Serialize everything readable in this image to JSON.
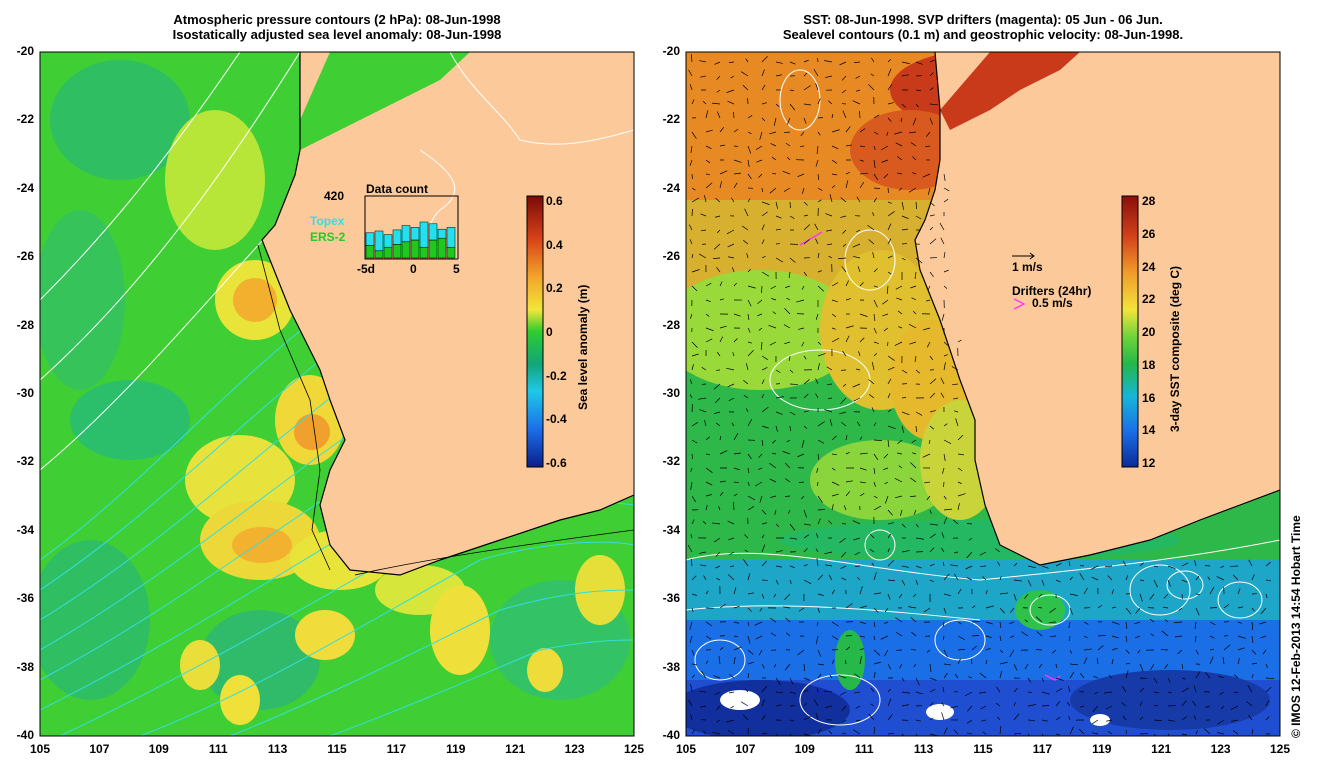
{
  "left_panel": {
    "title_line1": "Atmospheric pressure contours (2 hPa): 08-Jun-1998",
    "title_line2": "Isostatically adjusted sea level anomaly: 08-Jun-1998",
    "x_ticks": [
      "105",
      "107",
      "109",
      "111",
      "113",
      "115",
      "117",
      "119",
      "121",
      "123",
      "125"
    ],
    "y_ticks": [
      "-20",
      "-22",
      "-24",
      "-26",
      "-28",
      "-30",
      "-32",
      "-34",
      "-36",
      "-38",
      "-40"
    ],
    "colorbar": {
      "label": "Sea level anomaly (m)",
      "ticks": [
        "0.6",
        "0.4",
        "0.2",
        "0",
        "-0.2",
        "-0.4",
        "-0.6"
      ],
      "colors": [
        "#7a0a08",
        "#d84418",
        "#f3a52c",
        "#f2e63a",
        "#2fcc2f",
        "#12a57a",
        "#1ec8e8",
        "#1b6fe8",
        "#0a1f8a"
      ]
    },
    "inset": {
      "count": "420",
      "title": "Data count",
      "legend_topex": "Topex",
      "legend_ers2": "ERS-2",
      "x_labels": [
        "-5d",
        "0",
        "5"
      ],
      "topex_color": "#22e0ee",
      "ers_color": "#1ec81e",
      "bars": [
        {
          "topex": 0.35,
          "ers": 0.35
        },
        {
          "topex": 0.55,
          "ers": 0.2
        },
        {
          "topex": 0.35,
          "ers": 0.3
        },
        {
          "topex": 0.4,
          "ers": 0.38
        },
        {
          "topex": 0.45,
          "ers": 0.45
        },
        {
          "topex": 0.35,
          "ers": 0.5
        },
        {
          "topex": 0.7,
          "ers": 0.3
        },
        {
          "topex": 0.45,
          "ers": 0.5
        },
        {
          "topex": 0.25,
          "ers": 0.55
        },
        {
          "topex": 0.55,
          "ers": 0.3
        }
      ]
    }
  },
  "right_panel": {
    "title_line1": "SST: 08-Jun-1998. SVP drifters (magenta): 05 Jun - 06 Jun.",
    "title_line2": "Sealevel contours (0.1 m) and geostrophic velocity: 08-Jun-1998.",
    "x_ticks": [
      "105",
      "107",
      "109",
      "111",
      "113",
      "115",
      "117",
      "119",
      "121",
      "123",
      "125"
    ],
    "y_ticks": [
      "-20",
      "-22",
      "-24",
      "-26",
      "-28",
      "-30",
      "-32",
      "-34",
      "-36",
      "-38",
      "-40"
    ],
    "colorbar": {
      "label": "3-day SST composite (deg C)",
      "ticks": [
        "28",
        "26",
        "24",
        "22",
        "20",
        "18",
        "16",
        "14",
        "12"
      ],
      "colors": [
        "#8a0e0a",
        "#d2421a",
        "#f09a2a",
        "#f2e43a",
        "#6ed43a",
        "#22b84a",
        "#17b5d8",
        "#1a6ee6",
        "#0b2a9a"
      ]
    },
    "velocity_scale": "1 m/s",
    "drifter_legend_title": "Drifters (24hr)",
    "drifter_scale": "0.5 m/s",
    "drifter_color": "#ff33ff"
  },
  "colors": {
    "land": "#fcc99a",
    "coast": "#000000",
    "contour_cyan": "#33dede",
    "contour_white": "#ffffff"
  },
  "credit": "© IMOS 12-Feb-2013 14:54 Hobart Time"
}
